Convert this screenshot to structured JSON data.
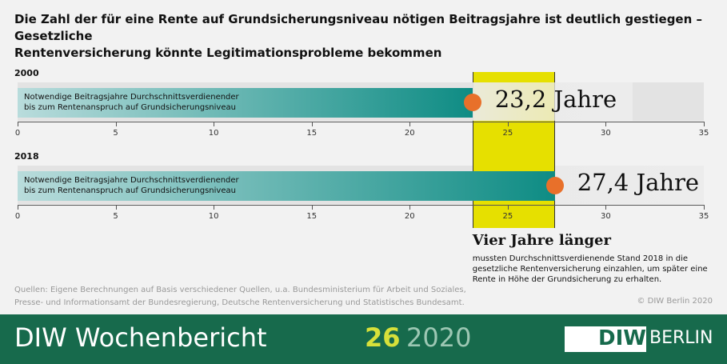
{
  "title": "Die Zahl der für eine Rente auf Grundsicherungsniveau nötigen Beitragsjahre ist deutlich gestiegen – Gesetzliche\nRentenversicherung könnte Legitimationsprobleme bekommen",
  "chart_data": {
    "type": "bar",
    "orientation": "horizontal",
    "categories": [
      "2000",
      "2018"
    ],
    "series": [
      {
        "name": "Notwendige Beitragsjahre Durchschnittsverdienender\nbis zum Rentenanspruch auf Grundsicherungsniveau",
        "color": "#0e8c84",
        "values": [
          23.2,
          27.4
        ],
        "value_labels": [
          "23,2 Jahre",
          "27,4 Jahre"
        ]
      }
    ],
    "xlim": [
      0,
      35
    ],
    "xticks": [
      0,
      5,
      10,
      15,
      20,
      25,
      30,
      35
    ],
    "highlight_color": "#e6e000",
    "annotation_title": "Vier Jahre länger",
    "annotation_text": "mussten Durchschnittsverdienende Stand 2018 in die\ngesetzliche Rentenversicherung einzahlen, um später eine\nRente in Höhe der Grundsicherung zu erhalten."
  },
  "source": "Quellen: Eigene Berechnungen auf Basis verschiedener Quellen, u.a. Bundesministerium für Arbeit und Soziales,\nPresse- und Informationsamt der Bundesregierung, Deutsche Rentenversicherung und Statistisches Bundesamt.",
  "copyright": "© DIW Berlin 2020",
  "footer": {
    "publication": "DIW Wochenbericht",
    "issue": "26",
    "year": "2020",
    "logo": "DIW",
    "logo_city": "BERLIN"
  }
}
